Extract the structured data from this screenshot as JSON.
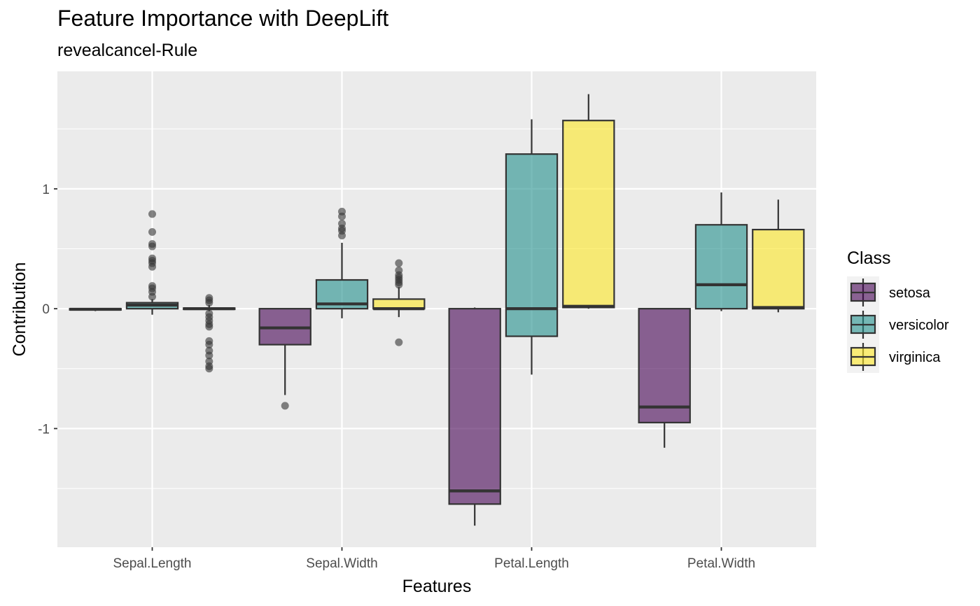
{
  "chart_data": {
    "type": "boxplot",
    "title": "Feature Importance with DeepLift",
    "subtitle": "revealcancel-Rule",
    "xlabel": "Features",
    "ylabel": "Contribution",
    "categories": [
      "Sepal.Length",
      "Sepal.Width",
      "Petal.Length",
      "Petal.Width"
    ],
    "yticks": [
      {
        "value": 1,
        "label": "1"
      },
      {
        "value": 0,
        "label": "0"
      },
      {
        "value": -1,
        "label": "-1"
      }
    ],
    "ylim": [
      -1.99,
      1.98
    ],
    "grid": true,
    "legend": {
      "title": "Class",
      "placement": "right"
    },
    "series": [
      {
        "name": "setosa",
        "color": "#440154",
        "boxes": [
          {
            "min": -0.02,
            "q1": -0.01,
            "median": -0.005,
            "q3": 0.0,
            "max": 0.0,
            "outliers": []
          },
          {
            "min": -0.72,
            "q1": -0.3,
            "median": -0.16,
            "q3": 0.0,
            "max": 0.0,
            "outliers": [
              -0.81
            ]
          },
          {
            "min": -1.81,
            "q1": -1.63,
            "median": -1.52,
            "q3": 0.0,
            "max": 0.01,
            "outliers": []
          },
          {
            "min": -1.16,
            "q1": -0.95,
            "median": -0.82,
            "q3": 0.0,
            "max": 0.0,
            "outliers": []
          }
        ]
      },
      {
        "name": "versicolor",
        "color": "#21908C",
        "boxes": [
          {
            "min": -0.05,
            "q1": 0.0,
            "median": 0.03,
            "q3": 0.05,
            "max": 0.08,
            "outliers": [
              0.1,
              0.14,
              0.17,
              0.19,
              0.35,
              0.38,
              0.4,
              0.42,
              0.52,
              0.54,
              0.64,
              0.79
            ]
          },
          {
            "min": -0.08,
            "q1": 0.0,
            "median": 0.04,
            "q3": 0.24,
            "max": 0.55,
            "outliers": [
              0.61,
              0.65,
              0.67,
              0.71,
              0.77,
              0.81
            ]
          },
          {
            "min": -0.55,
            "q1": -0.23,
            "median": 0.0,
            "q3": 1.29,
            "max": 1.58,
            "outliers": []
          },
          {
            "min": -0.02,
            "q1": 0.0,
            "median": 0.2,
            "q3": 0.7,
            "max": 0.97,
            "outliers": []
          }
        ]
      },
      {
        "name": "virginica",
        "color": "#FDE725",
        "boxes": [
          {
            "min": -0.02,
            "q1": -0.005,
            "median": 0.0,
            "q3": 0.005,
            "max": 0.03,
            "outliers": [
              0.05,
              0.07,
              -0.04,
              -0.07,
              -0.1,
              -0.13,
              -0.15,
              -0.27,
              -0.3,
              -0.35,
              -0.39,
              -0.44,
              -0.48,
              -0.5,
              0.09
            ]
          },
          {
            "min": -0.07,
            "q1": 0.0,
            "median": 0.0,
            "q3": 0.08,
            "max": 0.18,
            "outliers": [
              0.2,
              0.22,
              0.24,
              0.26,
              0.28,
              0.32,
              0.38,
              -0.28
            ]
          },
          {
            "min": 0.0,
            "q1": 0.01,
            "median": 0.02,
            "q3": 1.57,
            "max": 1.79,
            "outliers": []
          },
          {
            "min": -0.03,
            "q1": 0.0,
            "median": 0.01,
            "q3": 0.66,
            "max": 0.91,
            "outliers": []
          }
        ]
      }
    ]
  }
}
